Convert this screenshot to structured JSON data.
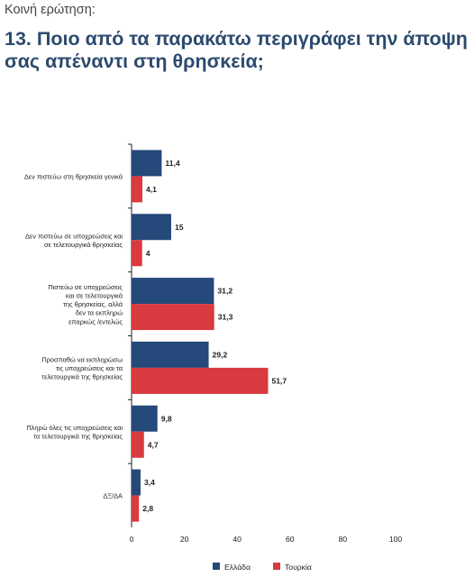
{
  "kicker": "Κοινή ερώτηση:",
  "title": "13. Ποιο από τα παρακάτω περιγράφει την άποψη σας απέναντι στη θρησκεία;",
  "chart_data": {
    "type": "bar",
    "orientation": "horizontal",
    "categories": [
      [
        "Δεν πιστεύω στη θρησκεία γενικά"
      ],
      [
        "Δεν πιστεύω σε υποχρεώσεις και",
        "σε τελετουργικά θρησκείας"
      ],
      [
        "Πιστεύω σε υποχρεώσεις",
        "και σε τελετουργικά",
        "της θρησκείας, αλλά",
        "δεν τα εκπληρώ",
        "επαρκώς /εντελώς"
      ],
      [
        "Προσπαθώ να εκπληρώσω",
        "τις υποχρεώσεις και τα",
        "τελετουργικά της θρησκείας"
      ],
      [
        "Πληρώ όλες τις υποχρεώσεις και",
        "τα τελετουργικά της θρησκείας"
      ],
      [
        "ΔΞ/ΔΑ"
      ]
    ],
    "series": [
      {
        "name": "Ελλάδα",
        "color": "#24497a",
        "values": [
          11.4,
          15,
          31.2,
          29.2,
          9.8,
          3.4
        ],
        "labels": [
          "11,4",
          "15",
          "31,2",
          "29,2",
          "9,8",
          "3,4"
        ]
      },
      {
        "name": "Τουρκία",
        "color": "#d93a3f",
        "values": [
          4.1,
          4,
          31.3,
          51.7,
          4.7,
          2.8
        ],
        "labels": [
          "4,1",
          "4",
          "31,3",
          "51,7",
          "4,7",
          "2,8"
        ]
      }
    ],
    "xlim": [
      0,
      100
    ],
    "xticks": [
      "0",
      "20",
      "40",
      "60",
      "80",
      "100"
    ],
    "grid": false,
    "legend": "bottom-center"
  }
}
